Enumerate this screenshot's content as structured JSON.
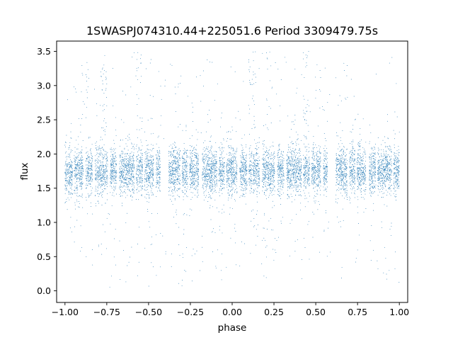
{
  "chart_data": {
    "type": "scatter",
    "title": "1SWASPJ074310.44+225051.6 Period 3309479.75s",
    "xlabel": "phase",
    "ylabel": "flux",
    "xlim": [
      -1.05,
      1.05
    ],
    "ylim": [
      -0.17,
      3.65
    ],
    "xticks": [
      -1.0,
      -0.75,
      -0.5,
      -0.25,
      0.0,
      0.25,
      0.5,
      0.75,
      1.0
    ],
    "xtick_labels": [
      "−1.00",
      "−0.75",
      "−0.50",
      "−0.25",
      "0.00",
      "0.25",
      "0.50",
      "0.75",
      "1.00"
    ],
    "yticks": [
      0.0,
      0.5,
      1.0,
      1.5,
      2.0,
      2.5,
      3.0,
      3.5
    ],
    "ytick_labels": [
      "0.0",
      "0.5",
      "1.0",
      "1.5",
      "2.0",
      "2.5",
      "3.0",
      "3.5"
    ],
    "grid": false,
    "marker_color": "#1f77b4",
    "series": [
      {
        "phase_range": [
          -1.0,
          1.0
        ],
        "flux_core_range": [
          1.35,
          2.15
        ],
        "flux_median": 1.75,
        "flux_spread": [
          0.0,
          3.5
        ],
        "observation_phase_bands": [
          [
            -1.0,
            -0.955
          ],
          [
            -0.945,
            -0.89
          ],
          [
            -0.875,
            -0.835
          ],
          [
            -0.82,
            -0.745
          ],
          [
            -0.73,
            -0.69
          ],
          [
            -0.675,
            -0.585
          ],
          [
            -0.575,
            -0.535
          ],
          [
            -0.525,
            -0.47
          ],
          [
            -0.455,
            -0.43
          ],
          [
            -0.38,
            -0.31
          ],
          [
            -0.3,
            -0.265
          ],
          [
            -0.255,
            -0.2
          ],
          [
            -0.18,
            -0.09
          ],
          [
            -0.08,
            -0.045
          ],
          [
            -0.035,
            0.03
          ],
          [
            0.045,
            0.09
          ],
          [
            0.1,
            0.12
          ],
          [
            0.125,
            0.165
          ],
          [
            0.18,
            0.255
          ],
          [
            0.27,
            0.31
          ],
          [
            0.325,
            0.415
          ],
          [
            0.425,
            0.465
          ],
          [
            0.475,
            0.53
          ],
          [
            0.545,
            0.57
          ],
          [
            0.62,
            0.69
          ],
          [
            0.7,
            0.735
          ],
          [
            0.745,
            0.8
          ],
          [
            0.82,
            0.86
          ],
          [
            0.87,
            0.955
          ],
          [
            0.965,
            1.0
          ]
        ],
        "high_flux_phases": [
          -0.88,
          -0.77,
          -0.56,
          0.12,
          0.22,
          0.44
        ]
      }
    ]
  }
}
